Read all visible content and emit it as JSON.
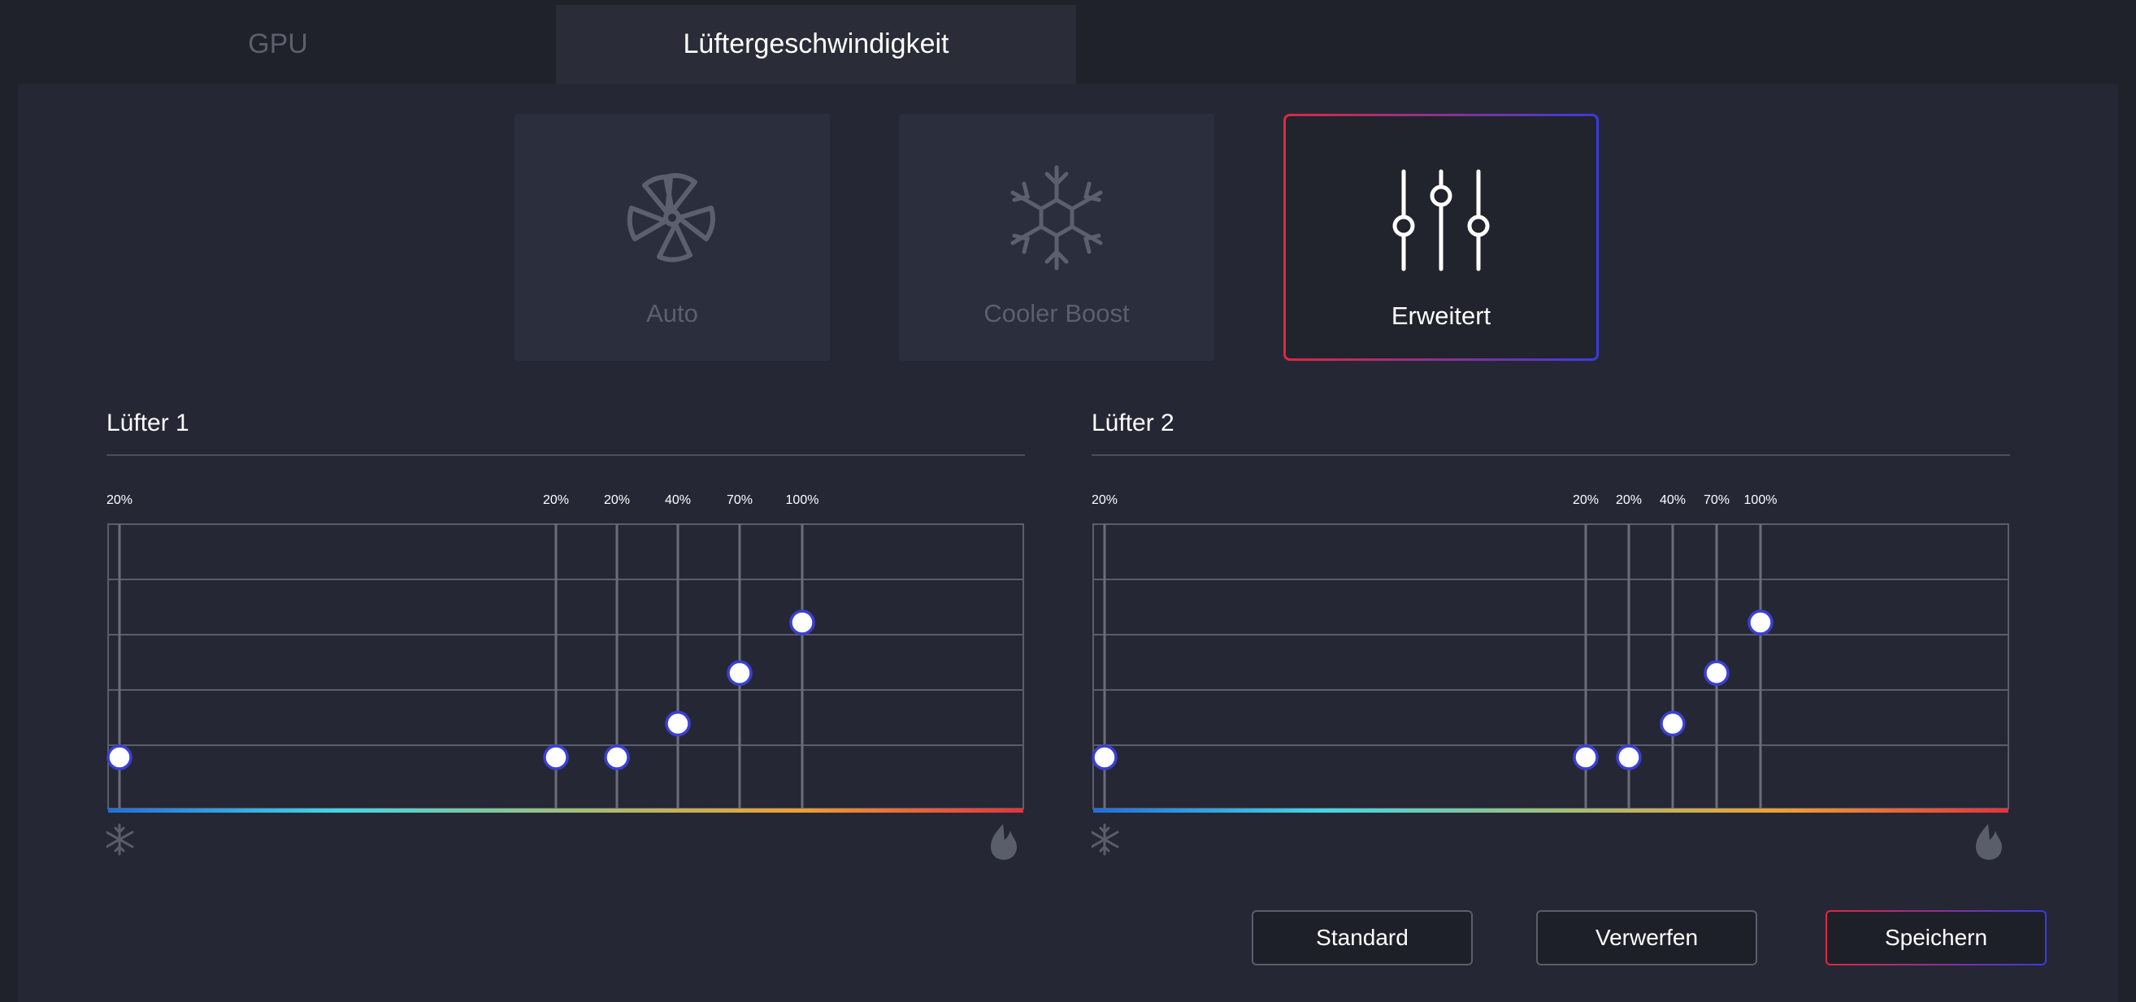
{
  "tabs": [
    {
      "label": "GPU",
      "active": false
    },
    {
      "label": "Lüftergeschwindigkeit",
      "active": true
    }
  ],
  "modes": [
    {
      "label": "Auto",
      "icon": "fan-icon",
      "selected": false
    },
    {
      "label": "Cooler Boost",
      "icon": "snowflake-icon",
      "selected": false
    },
    {
      "label": "Erweitert",
      "icon": "sliders-icon",
      "selected": true
    }
  ],
  "fans": [
    {
      "title": "Lüfter 1",
      "points": [
        {
          "label": "20%",
          "value": 20
        },
        {
          "label": "20%",
          "value": 20
        },
        {
          "label": "20%",
          "value": 20
        },
        {
          "label": "40%",
          "value": 40
        },
        {
          "label": "70%",
          "value": 70
        },
        {
          "label": "100%",
          "value": 100
        }
      ]
    },
    {
      "title": "Lüfter 2",
      "points": [
        {
          "label": "20%",
          "value": 20
        },
        {
          "label": "20%",
          "value": 20
        },
        {
          "label": "20%",
          "value": 20
        },
        {
          "label": "40%",
          "value": 40
        },
        {
          "label": "70%",
          "value": 70
        },
        {
          "label": "100%",
          "value": 100
        }
      ]
    }
  ],
  "colors": {
    "accent_red": "#e0283f",
    "accent_blue": "#3a3ae0",
    "handle_border": "#3b3fd4",
    "temp_gradient": [
      "#1e6fe0",
      "#3fd8e8",
      "#9ec07a",
      "#f0a030",
      "#e8303a"
    ]
  },
  "buttons": {
    "standard": "Standard",
    "discard": "Verwerfen",
    "save": "Speichern"
  }
}
